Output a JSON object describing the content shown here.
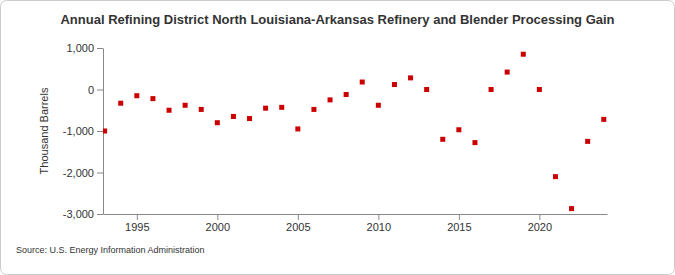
{
  "chart_data": {
    "type": "scatter",
    "title": "Annual Refining District North Louisiana-Arkansas Refinery and Blender Processing Gain",
    "y_label": "Thousand Barrels",
    "source": "Source: U.S. Energy Information Administration",
    "x": [
      1993,
      1994,
      1995,
      1996,
      1997,
      1998,
      1999,
      2000,
      2001,
      2002,
      2003,
      2004,
      2005,
      2006,
      2007,
      2008,
      2009,
      2010,
      2011,
      2012,
      2013,
      2014,
      2015,
      2016,
      2017,
      2018,
      2019,
      2020,
      2021,
      2022,
      2023,
      2024
    ],
    "values": [
      -1000,
      -330,
      -150,
      -220,
      -500,
      -380,
      -480,
      -800,
      -650,
      -700,
      -450,
      -430,
      -950,
      -480,
      -250,
      -120,
      180,
      -380,
      120,
      280,
      0,
      -1200,
      -970,
      -1280,
      0,
      420,
      850,
      0,
      -2100,
      -2870,
      -1250,
      -720
    ],
    "color": "#cc0000",
    "marker": "square",
    "grid": false,
    "xlim": [
      1992.9,
      2024.2
    ],
    "xticks": [
      1995,
      2000,
      2005,
      2010,
      2015,
      2020
    ],
    "ylim": [
      -3000,
      1000
    ],
    "yticks": [
      {
        "value": -3000,
        "label": "-3,000"
      },
      {
        "value": -2000,
        "label": "-2,000"
      },
      {
        "value": -1000,
        "label": "-1,000"
      },
      0,
      {
        "value": 1000,
        "label": "1,000"
      }
    ]
  }
}
